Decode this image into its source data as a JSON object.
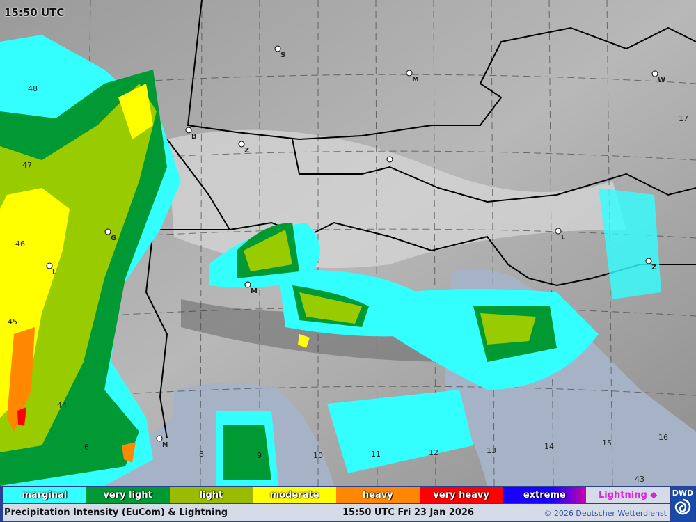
{
  "map": {
    "time_overlay": "15:50 UTC",
    "latitude_labels": [
      "48",
      "47",
      "46",
      "45",
      "44",
      "43"
    ],
    "longitude_labels": [
      "6",
      "8",
      "9",
      "10",
      "11",
      "12",
      "13",
      "14",
      "15",
      "16",
      "17"
    ],
    "city_markers": [
      "S",
      "M",
      "W",
      "B",
      "Z",
      "G",
      "L",
      "M",
      "N",
      "L",
      "Z"
    ]
  },
  "legend": {
    "items": [
      {
        "label": "marginal",
        "color": "#33ffff"
      },
      {
        "label": "very light",
        "color": "#009933"
      },
      {
        "label": "light",
        "color": "#99cc00"
      },
      {
        "label": "moderate",
        "color": "#ffff00"
      },
      {
        "label": "heavy",
        "color": "#ff8800"
      },
      {
        "label": "very heavy",
        "color": "#ff0000"
      },
      {
        "label": "extreme",
        "color": "#1a00ff"
      },
      {
        "label": "",
        "color": "#cc00aa"
      }
    ],
    "lightning_label": "Lightning ◆"
  },
  "footer": {
    "product_title": "Precipitation Intensity (EuCom) & Lightning",
    "timestamp": "15:50 UTC Fri 23 Jan 2026",
    "copyright": "© 2026 Deutscher Wetterdienst",
    "logo_text": "DWD"
  }
}
